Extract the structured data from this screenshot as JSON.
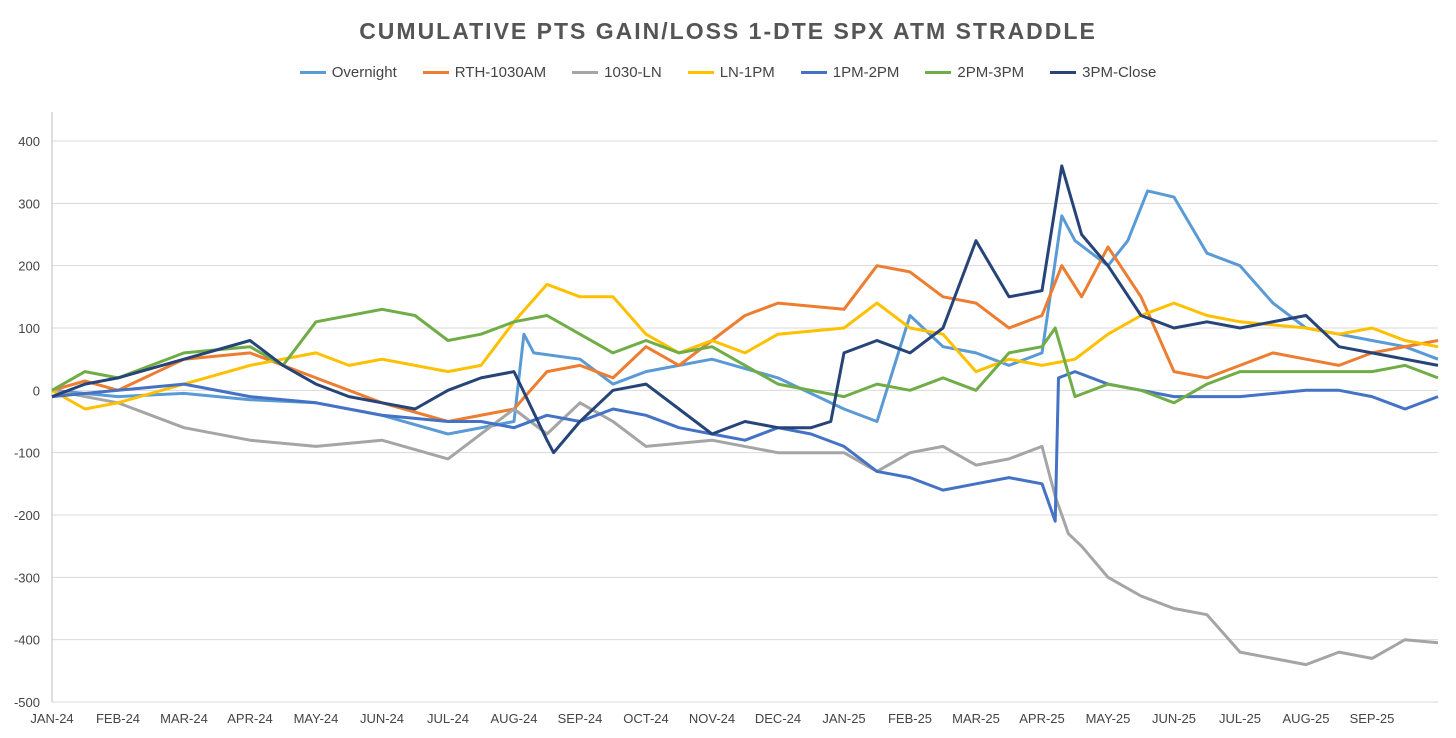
{
  "chart_data": {
    "type": "line",
    "title": "CUMULATIVE PTS GAIN/LOSS 1-DTE SPX ATM STRADDLE",
    "xlabel": "",
    "ylabel": "",
    "ylim": [
      -500,
      400
    ],
    "yticks": [
      "400",
      "300",
      "200",
      "100",
      "0",
      "-100",
      "-200",
      "-300",
      "-400",
      "-500"
    ],
    "ytick_values": [
      400,
      300,
      200,
      100,
      0,
      -100,
      -200,
      -300,
      -400,
      -500
    ],
    "x_index_range": [
      0,
      21
    ],
    "categories": [
      "JAN-24",
      "FEB-24",
      "MAR-24",
      "APR-24",
      "MAY-24",
      "JUN-24",
      "JUL-24",
      "AUG-24",
      "SEP-24",
      "OCT-24",
      "NOV-24",
      "DEC-24",
      "JAN-25",
      "FEB-25",
      "MAR-25",
      "APR-25",
      "MAY-25",
      "JUN-25",
      "JUL-25",
      "AUG-25",
      "SEP-25"
    ],
    "grid": "horizontal",
    "legend_position": "top",
    "series": [
      {
        "name": "Overnight",
        "color": "#5B9BD5",
        "x": [
          0,
          1,
          2,
          3,
          4,
          5,
          6,
          7,
          7.15,
          7.3,
          8,
          8.5,
          9,
          9.5,
          10,
          11,
          12,
          12.5,
          13,
          13.5,
          14,
          14.5,
          15,
          15.3,
          15.5,
          16,
          16.3,
          16.6,
          17,
          17.5,
          18,
          18.5,
          19,
          19.5,
          20,
          20.5,
          21
        ],
        "values": [
          0,
          -10,
          -5,
          -15,
          -20,
          -40,
          -70,
          -50,
          90,
          60,
          50,
          10,
          30,
          40,
          50,
          20,
          -30,
          -50,
          120,
          70,
          60,
          40,
          60,
          280,
          240,
          200,
          240,
          320,
          310,
          220,
          200,
          140,
          100,
          90,
          80,
          70,
          50
        ]
      },
      {
        "name": "RTH-1030AM",
        "color": "#ED7D31",
        "x": [
          0,
          0.5,
          1,
          2,
          3,
          3.5,
          4,
          5,
          6,
          7,
          7.5,
          8,
          8.5,
          9,
          9.5,
          10,
          10.5,
          11,
          12,
          12.5,
          13,
          13.5,
          14,
          14.5,
          15,
          15.3,
          15.6,
          16,
          16.5,
          17,
          17.5,
          18,
          18.5,
          19,
          19.5,
          20,
          21
        ],
        "values": [
          0,
          15,
          0,
          50,
          60,
          40,
          20,
          -20,
          -50,
          -30,
          30,
          40,
          20,
          70,
          40,
          80,
          120,
          140,
          130,
          200,
          190,
          150,
          140,
          100,
          120,
          200,
          150,
          230,
          150,
          30,
          20,
          40,
          60,
          50,
          40,
          60,
          80
        ]
      },
      {
        "name": "1030-LN",
        "color": "#A5A5A5",
        "x": [
          0,
          1,
          2,
          3,
          4,
          5,
          6,
          7,
          7.5,
          8,
          8.5,
          9,
          10,
          11,
          12,
          12.5,
          13,
          13.5,
          14,
          14.5,
          15,
          15.2,
          15.4,
          15.6,
          16,
          16.5,
          17,
          17.5,
          18,
          18.5,
          19,
          19.5,
          20,
          20.5,
          21
        ],
        "values": [
          0,
          -20,
          -60,
          -80,
          -90,
          -80,
          -110,
          -30,
          -70,
          -20,
          -50,
          -90,
          -80,
          -100,
          -100,
          -130,
          -100,
          -90,
          -120,
          -110,
          -90,
          -170,
          -230,
          -250,
          -300,
          -330,
          -350,
          -360,
          -420,
          -430,
          -440,
          -420,
          -430,
          -400,
          -405
        ]
      },
      {
        "name": "LN-1PM",
        "color": "#FFC000",
        "x": [
          0,
          0.5,
          1,
          2,
          3,
          4,
          4.5,
          5,
          6,
          6.5,
          7,
          7.5,
          8,
          8.5,
          9,
          9.5,
          10,
          10.5,
          11,
          12,
          12.5,
          13,
          13.5,
          14,
          14.5,
          15,
          15.5,
          16,
          16.5,
          17,
          17.5,
          18,
          19,
          19.5,
          20,
          20.5,
          21
        ],
        "values": [
          0,
          -30,
          -20,
          10,
          40,
          60,
          40,
          50,
          30,
          40,
          110,
          170,
          150,
          150,
          90,
          60,
          80,
          60,
          90,
          100,
          140,
          100,
          90,
          30,
          50,
          40,
          50,
          90,
          120,
          140,
          120,
          110,
          100,
          90,
          100,
          80,
          70
        ]
      },
      {
        "name": "1PM-2PM",
        "color": "#4472C4",
        "x": [
          0,
          1,
          2,
          3,
          4,
          5,
          6,
          6.5,
          7,
          7.5,
          8,
          8.5,
          9,
          9.5,
          10,
          10.5,
          11,
          11.5,
          12,
          12.5,
          13,
          13.5,
          14,
          14.5,
          15,
          15.2,
          15.25,
          15.5,
          16,
          16.5,
          17,
          18,
          19,
          19.5,
          20,
          20.5,
          21
        ],
        "values": [
          -10,
          0,
          10,
          -10,
          -20,
          -40,
          -50,
          -50,
          -60,
          -40,
          -50,
          -30,
          -40,
          -60,
          -70,
          -80,
          -60,
          -70,
          -90,
          -130,
          -140,
          -160,
          -150,
          -140,
          -150,
          -210,
          20,
          30,
          10,
          0,
          -10,
          -10,
          0,
          0,
          -10,
          -30,
          -10
        ]
      },
      {
        "name": "2PM-3PM",
        "color": "#70AD47",
        "x": [
          0,
          0.5,
          1,
          2,
          3,
          3.5,
          4,
          5,
          5.5,
          6,
          6.5,
          7,
          7.5,
          8,
          8.5,
          9,
          9.5,
          10,
          11,
          12,
          12.5,
          13,
          13.5,
          14,
          14.5,
          15,
          15.2,
          15.5,
          16,
          16.5,
          17,
          17.5,
          18,
          19,
          20,
          20.5,
          21
        ],
        "values": [
          0,
          30,
          20,
          60,
          70,
          40,
          110,
          130,
          120,
          80,
          90,
          110,
          120,
          90,
          60,
          80,
          60,
          70,
          10,
          -10,
          10,
          0,
          20,
          0,
          60,
          70,
          100,
          -10,
          10,
          0,
          -20,
          10,
          30,
          30,
          30,
          40,
          20
        ]
      },
      {
        "name": "3PM-Close",
        "color": "#264478",
        "x": [
          0,
          0.5,
          1,
          2,
          3,
          3.5,
          4,
          4.5,
          5,
          5.5,
          6,
          6.5,
          7,
          7.5,
          7.6,
          8,
          8.5,
          9,
          9.5,
          10,
          10.5,
          11,
          11.5,
          11.8,
          12,
          12.5,
          13,
          13.5,
          14,
          14.5,
          15,
          15.3,
          15.6,
          16,
          16.5,
          17,
          17.5,
          18,
          19,
          19.5,
          20,
          21
        ],
        "values": [
          -10,
          10,
          20,
          50,
          80,
          40,
          10,
          -10,
          -20,
          -30,
          0,
          20,
          30,
          -80,
          -100,
          -50,
          0,
          10,
          -30,
          -70,
          -50,
          -60,
          -60,
          -50,
          60,
          80,
          60,
          100,
          240,
          150,
          160,
          360,
          250,
          200,
          120,
          100,
          110,
          100,
          120,
          70,
          60,
          40
        ]
      }
    ]
  }
}
